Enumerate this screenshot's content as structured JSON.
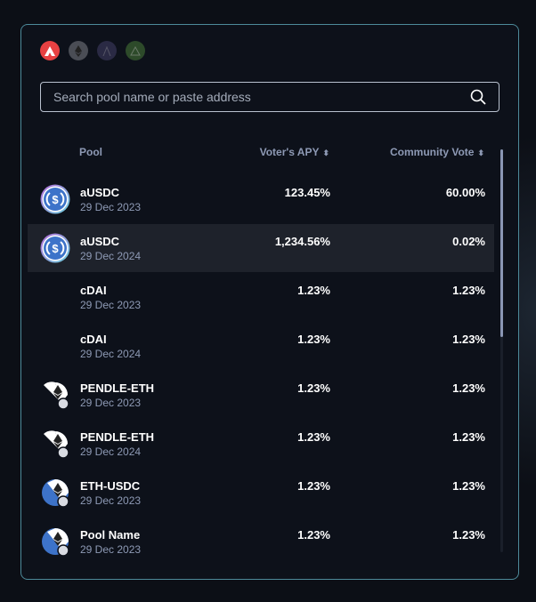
{
  "chains": [
    {
      "name": "avalanche-icon",
      "bg": "#e84142"
    },
    {
      "name": "ethereum-icon",
      "bg": "#4a4d55"
    },
    {
      "name": "arbitrum-icon",
      "bg": "#2a2a44"
    },
    {
      "name": "network-triangle-icon",
      "bg": "#2d4a2a"
    }
  ],
  "search": {
    "placeholder": "Search pool name or paste address"
  },
  "table": {
    "headers": {
      "pool": "Pool",
      "apy": "Voter's APY",
      "vote": "Community Vote"
    },
    "rows": [
      {
        "icon": "usdc",
        "name": "aUSDC",
        "date": "29 Dec 2023",
        "apy": "123.45%",
        "vote": "60.00%"
      },
      {
        "icon": "usdc",
        "name": "aUSDC",
        "date": "29 Dec 2024",
        "apy": "1,234.56%",
        "vote": "0.02%",
        "highlighted": true
      },
      {
        "icon": "none",
        "name": "cDAI",
        "date": "29 Dec 2023",
        "apy": "1.23%",
        "vote": "1.23%"
      },
      {
        "icon": "none",
        "name": "cDAI",
        "date": "29 Dec 2024",
        "apy": "1.23%",
        "vote": "1.23%"
      },
      {
        "icon": "pendle-eth",
        "name": "PENDLE-ETH",
        "date": "29 Dec 2023",
        "apy": "1.23%",
        "vote": "1.23%"
      },
      {
        "icon": "pendle-eth",
        "name": "PENDLE-ETH",
        "date": "29 Dec 2024",
        "apy": "1.23%",
        "vote": "1.23%"
      },
      {
        "icon": "eth-usdc",
        "name": "ETH-USDC",
        "date": "29 Dec 2023",
        "apy": "1.23%",
        "vote": "1.23%"
      },
      {
        "icon": "eth-usdc",
        "name": "Pool Name",
        "date": "29 Dec 2023",
        "apy": "1.23%",
        "vote": "1.23%"
      }
    ]
  }
}
